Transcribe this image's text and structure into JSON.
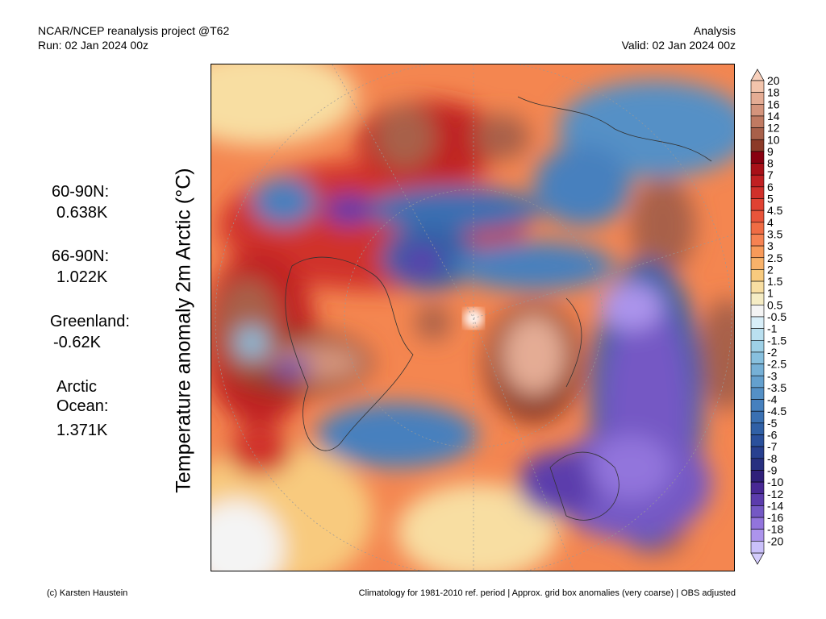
{
  "header": {
    "title": "NCAR/NCEP reanalysis project @T62",
    "run": "Run: 02 Jan 2024 00z",
    "type": "Analysis",
    "valid": "Valid: 02 Jan 2024 00z"
  },
  "ylabel": "Temperature anomaly 2m Arctic (°C)",
  "stats": [
    {
      "label": "60-90N:",
      "value": "0.638K"
    },
    {
      "label": "66-90N:",
      "value": "1.022K"
    },
    {
      "label": "Greenland:",
      "value": "-0.62K"
    },
    {
      "label": "Arctic\nOcean:",
      "value": "1.371K"
    }
  ],
  "footer": {
    "credit": "(c) Karsten Haustein",
    "note": "Climatology for 1981-2010 ref. period | Approx. grid box anomalies (very coarse) | OBS adjusted"
  },
  "legend": {
    "labels": [
      "20",
      "18",
      "16",
      "14",
      "12",
      "10",
      "9",
      "8",
      "7",
      "6",
      "5",
      "4.5",
      "4",
      "3.5",
      "3",
      "2.5",
      "2",
      "1.5",
      "1",
      "0.5",
      "-0.5",
      "-1",
      "-1.5",
      "-2",
      "-2.5",
      "-3",
      "-3.5",
      "-4",
      "-4.5",
      "-5",
      "-6",
      "-7",
      "-8",
      "-9",
      "-10",
      "-12",
      "-14",
      "-16",
      "-18",
      "-20"
    ],
    "colors": [
      "#f2c4ac",
      "#e4ac94",
      "#d4947c",
      "#c07a62",
      "#a8604a",
      "#8c3a28",
      "#880010",
      "#a81018",
      "#c02022",
      "#d0302a",
      "#e04232",
      "#e8543a",
      "#f06c44",
      "#f68252",
      "#f89a5a",
      "#f8b26a",
      "#f8ca7e",
      "#f8dea2",
      "#f5ecc4",
      "#f4f4f4",
      "#d8eef8",
      "#bae0f0",
      "#9ed0e6",
      "#88c0de",
      "#76b0d6",
      "#64a0ce",
      "#5490c6",
      "#4680be",
      "#3a70b2",
      "#3060a6",
      "#2a509c",
      "#284090",
      "#283080",
      "#30207a",
      "#482894",
      "#5c3cac",
      "#7458c4",
      "#9274dc",
      "#ac94ec",
      "#cac0fa"
    ],
    "top_end": "#f8d0bc",
    "bottom_end": "#d4ccfc"
  }
}
